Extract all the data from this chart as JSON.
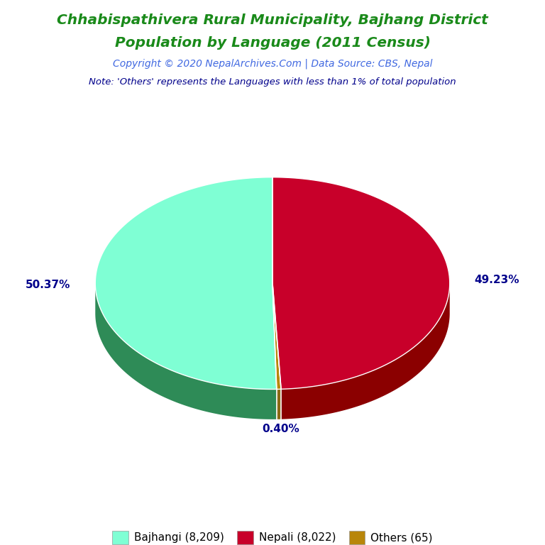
{
  "title_line1": "Chhabispathivera Rural Municipality, Bajhang District",
  "title_line2": "Population by Language (2011 Census)",
  "title_color": "#1a8a1a",
  "copyright_text": "Copyright © 2020 NepalArchives.Com | Data Source: CBS, Nepal",
  "copyright_color": "#4169E1",
  "note_text": "Note: 'Others' represents the Languages with less than 1% of total population",
  "note_color": "#00008B",
  "slice_order": [
    "Bajhangi",
    "Others",
    "Nepali"
  ],
  "values": [
    50.37,
    0.4,
    49.23
  ],
  "colors_top": [
    "#7FFFD4",
    "#B8860B",
    "#C8002A"
  ],
  "colors_side": [
    "#2E8B57",
    "#8B6914",
    "#8B0000"
  ],
  "pct_labels": [
    "50.37%",
    "0.40%",
    "49.23%"
  ],
  "legend_labels": [
    "Bajhangi (8,209)",
    "Nepali (8,022)",
    "Others (65)"
  ],
  "legend_colors": [
    "#7FFFD4",
    "#C8002A",
    "#B8860B"
  ],
  "pct_color": "#00008B",
  "background_color": "#FFFFFF",
  "startangle": 90
}
